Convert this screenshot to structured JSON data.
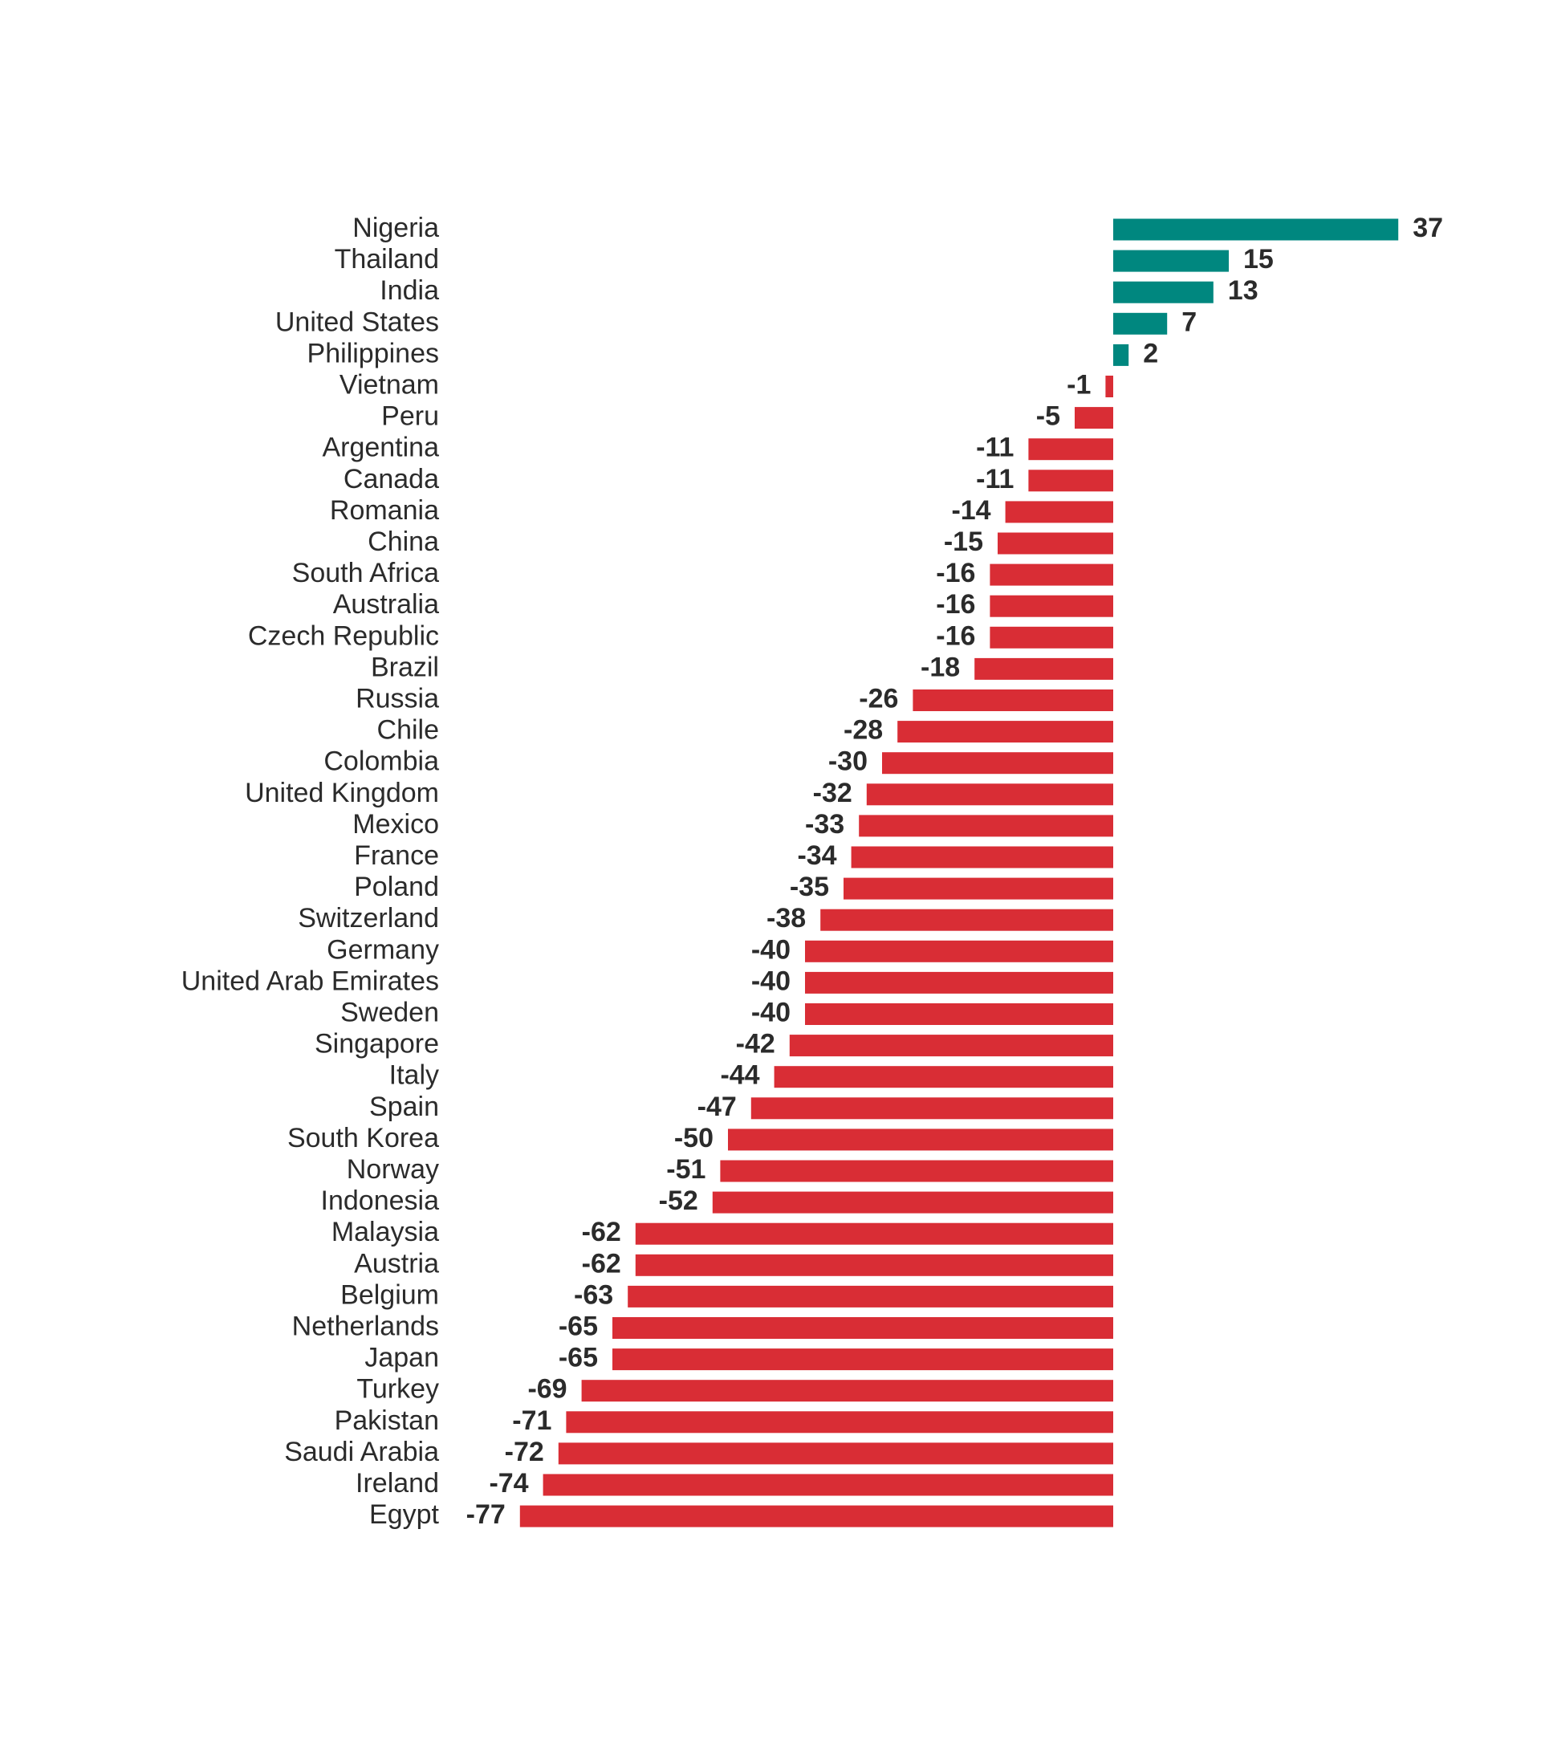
{
  "chart_data": {
    "type": "bar",
    "orientation": "horizontal",
    "title": "",
    "xlabel": "",
    "ylabel": "",
    "grid": false,
    "legend": "none",
    "colors": {
      "positive": "#00877f",
      "negative": "#d92d35",
      "text": "#2b2b2b"
    },
    "categories": [
      "Nigeria",
      "Thailand",
      "India",
      "United States",
      "Philippines",
      "Vietnam",
      "Peru",
      "Argentina",
      "Canada",
      "Romania",
      "China",
      "South Africa",
      "Australia",
      "Czech Republic",
      "Brazil",
      "Russia",
      "Chile",
      "Colombia",
      "United Kingdom",
      "Mexico",
      "France",
      "Poland",
      "Switzerland",
      "Germany",
      "United Arab Emirates",
      "Sweden",
      "Singapore",
      "Italy",
      "Spain",
      "South Korea",
      "Norway",
      "Indonesia",
      "Malaysia",
      "Austria",
      "Belgium",
      "Netherlands",
      "Japan",
      "Turkey",
      "Pakistan",
      "Saudi Arabia",
      "Ireland",
      "Egypt"
    ],
    "values": [
      37,
      15,
      13,
      7,
      2,
      -1,
      -5,
      -11,
      -11,
      -14,
      -15,
      -16,
      -16,
      -16,
      -18,
      -26,
      -28,
      -30,
      -32,
      -33,
      -34,
      -35,
      -38,
      -40,
      -40,
      -40,
      -42,
      -44,
      -47,
      -50,
      -51,
      -52,
      -62,
      -62,
      -63,
      -65,
      -65,
      -69,
      -71,
      -72,
      -74,
      -77
    ],
    "xlim": [
      -77,
      37
    ]
  }
}
